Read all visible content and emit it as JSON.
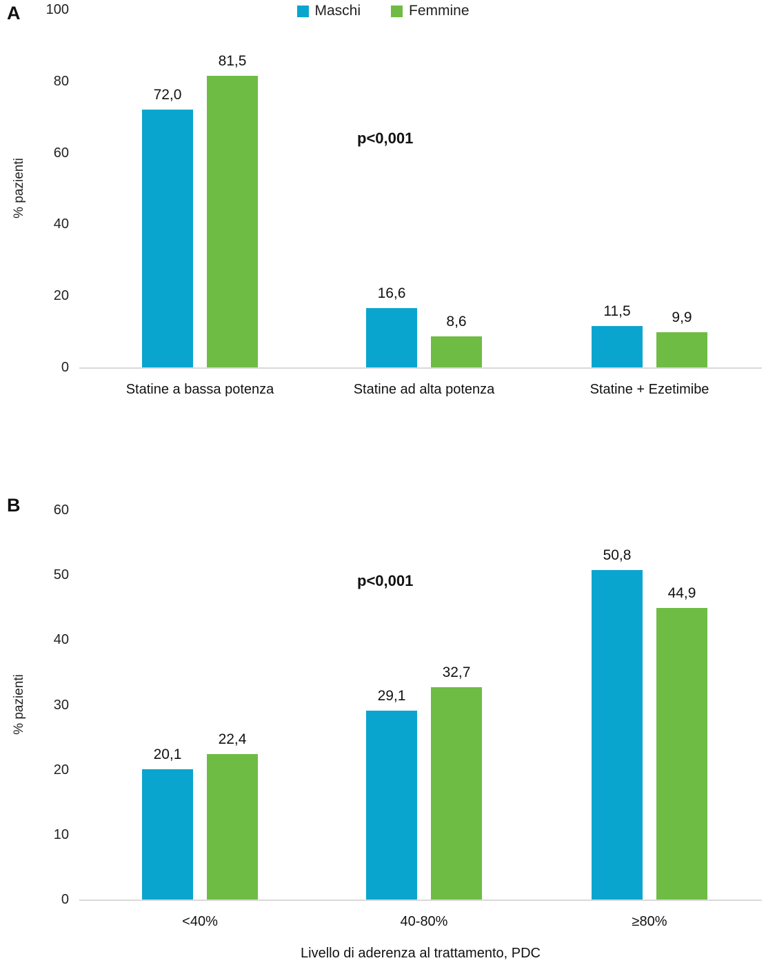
{
  "figure": {
    "legend": [
      {
        "label": "Maschi",
        "color": "#0aa5cf"
      },
      {
        "label": "Femmine",
        "color": "#6fbc44"
      }
    ],
    "baseline_color": "#d9d9d9"
  },
  "chart_data": [
    {
      "type": "bar",
      "panel": "A",
      "categories": [
        "Statine a bassa potenza",
        "Statine ad alta potenza",
        "Statine + Ezetimibe"
      ],
      "series": [
        {
          "name": "Maschi",
          "color": "#0aa5cf",
          "values": [
            72.0,
            16.6,
            11.5
          ]
        },
        {
          "name": "Femmine",
          "color": "#6fbc44",
          "values": [
            81.5,
            8.6,
            9.9
          ]
        }
      ],
      "value_labels": [
        [
          "72,0",
          "16,6",
          "11,5"
        ],
        [
          "81,5",
          "8,6",
          "9,9"
        ]
      ],
      "ylabel": "% pazienti",
      "xlabel": "",
      "ylim": [
        0,
        100
      ],
      "yticks": [
        0,
        20,
        40,
        60,
        80,
        100
      ],
      "annotation": "p<0,001",
      "legend_position": "top",
      "grid": false
    },
    {
      "type": "bar",
      "panel": "B",
      "categories": [
        "<40%",
        "40-80%",
        "≥80%"
      ],
      "series": [
        {
          "name": "Maschi",
          "color": "#0aa5cf",
          "values": [
            20.1,
            29.1,
            50.8
          ]
        },
        {
          "name": "Femmine",
          "color": "#6fbc44",
          "values": [
            22.4,
            32.7,
            44.9
          ]
        }
      ],
      "value_labels": [
        [
          "20,1",
          "29,1",
          "50,8"
        ],
        [
          "22,4",
          "32,7",
          "44,9"
        ]
      ],
      "ylabel": "% pazienti",
      "xlabel": "Livello di aderenza al trattamento, PDC",
      "ylim": [
        0,
        60
      ],
      "yticks": [
        0,
        10,
        20,
        30,
        40,
        50,
        60
      ],
      "annotation": "p<0,001",
      "legend_position": "none",
      "grid": false
    }
  ]
}
